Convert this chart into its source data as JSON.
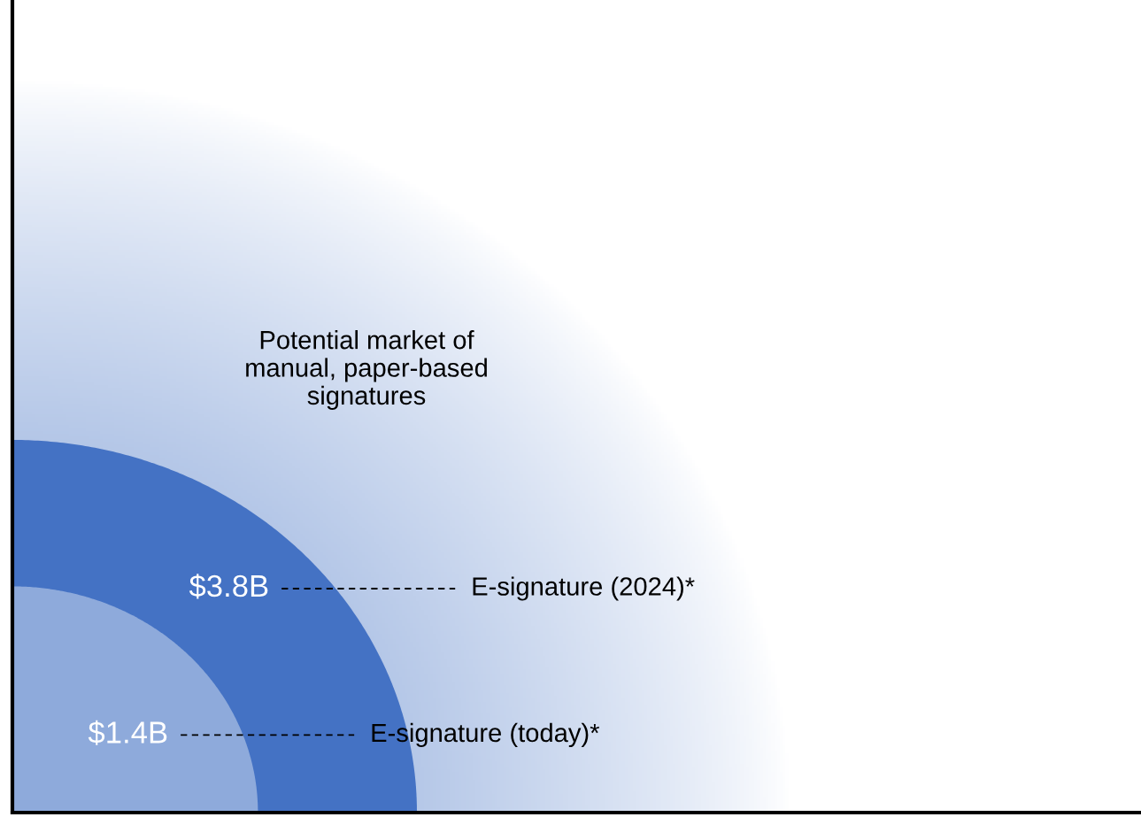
{
  "chart_data": {
    "type": "other",
    "categories": [
      "E-signature (today)*",
      "E-signature (2024)*"
    ],
    "values": [
      1.4,
      3.8
    ],
    "value_labels": [
      "$1.4B",
      "$3.8B"
    ],
    "colors": [
      "#8eaadb",
      "#4472c4"
    ],
    "annotations": [
      "Potential market of\nmanual, paper-based\nsignatures"
    ]
  }
}
